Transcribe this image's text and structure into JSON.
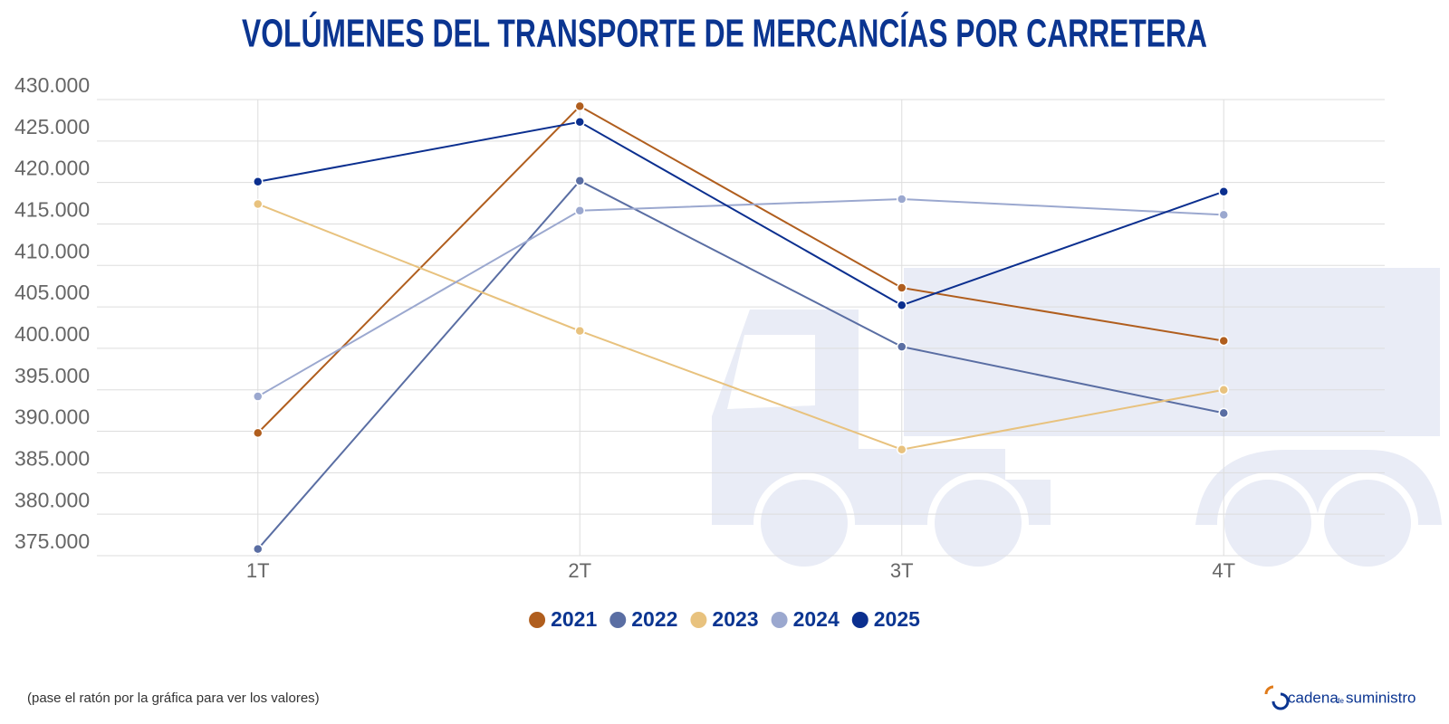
{
  "chart_data": {
    "type": "line",
    "title": "VOLÚMENES DEL TRANSPORTE DE MERCANCÍAS POR CARRETERA",
    "categories": [
      "1T",
      "2T",
      "3T",
      "4T"
    ],
    "series": [
      {
        "name": "2021",
        "color": "#b05e1e",
        "values": [
          389800,
          429200,
          407300,
          400900
        ]
      },
      {
        "name": "2022",
        "color": "#5a6ea3",
        "values": [
          375800,
          420200,
          400200,
          392200
        ]
      },
      {
        "name": "2023",
        "color": "#e8c27e",
        "values": [
          417400,
          402100,
          387800,
          395000
        ]
      },
      {
        "name": "2024",
        "color": "#9ba8cf",
        "values": [
          394200,
          416600,
          418000,
          416100
        ]
      },
      {
        "name": "2025",
        "color": "#0b2f8f",
        "values": [
          420100,
          427300,
          405200,
          418900
        ]
      }
    ],
    "ylim": [
      375000,
      430000
    ],
    "yticks": [
      {
        "value": 375000,
        "label": "375.000"
      },
      {
        "value": 380000,
        "label": "380.000"
      },
      {
        "value": 385000,
        "label": "385.000"
      },
      {
        "value": 390000,
        "label": "390.000"
      },
      {
        "value": 395000,
        "label": "395.000"
      },
      {
        "value": 400000,
        "label": "400.000"
      },
      {
        "value": 405000,
        "label": "405.000"
      },
      {
        "value": 410000,
        "label": "410.000"
      },
      {
        "value": 415000,
        "label": "415.000"
      },
      {
        "value": 420000,
        "label": "420.000"
      },
      {
        "value": 425000,
        "label": "425.000"
      },
      {
        "value": 430000,
        "label": "430.000"
      }
    ],
    "grid": true,
    "legend": "bottom",
    "footnote": "(pase el ratón por la gráfica para ver los valores)",
    "logo": {
      "left": "cadena",
      "middle": "de",
      "right": "suministro"
    }
  }
}
